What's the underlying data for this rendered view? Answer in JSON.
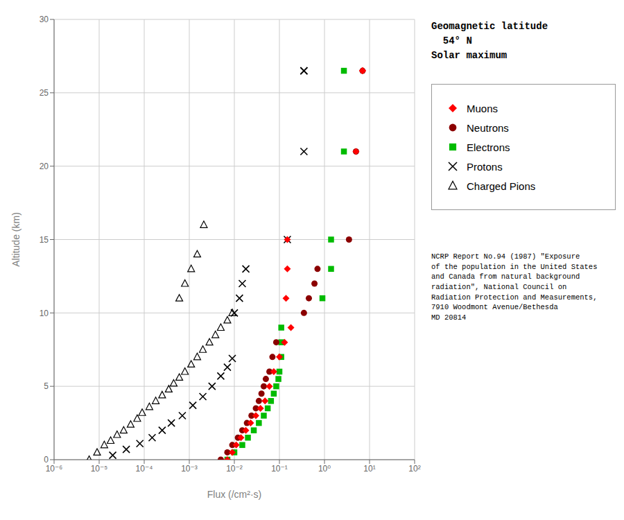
{
  "chart_data": {
    "type": "scatter",
    "xlabel": "Flux (/cm²·s)",
    "ylabel": "Altitude (km)",
    "log": "x",
    "xlim": [
      1e-06,
      100
    ],
    "xticks": [
      {
        "value": 1e-06,
        "label": "10⁻⁶"
      },
      {
        "value": 1e-05,
        "label": "10⁻⁵"
      },
      {
        "value": 0.0001,
        "label": "10⁻⁴"
      },
      {
        "value": 0.001,
        "label": "10⁻³"
      },
      {
        "value": 0.01,
        "label": "10⁻²"
      },
      {
        "value": 0.1,
        "label": "10⁻¹"
      },
      {
        "value": 1,
        "label": "10⁰"
      },
      {
        "value": 10,
        "label": "10¹"
      },
      {
        "value": 100,
        "label": "10²"
      }
    ],
    "ylim": [
      0,
      30
    ],
    "yticks": [
      0,
      5,
      10,
      15,
      20,
      25,
      30
    ],
    "grid": true,
    "legend": "right",
    "annotations": [
      "Geomagnetic latitude\n  54° N\nSolar maximum",
      "NCRP Report No.94 (1987) \"Exposure\nof the population in the United States\nand Canada from natural background\nradiation\", National Council on\nRadiation Protection and Measurements,\n7910 Woodmont Avenue/Bethesda\nMD 20814"
    ],
    "series": [
      {
        "name": "Muons",
        "color": "#FF0000",
        "marker": "diamond",
        "x": [
          0.007,
          0.009,
          0.011,
          0.014,
          0.018,
          0.023,
          0.03,
          0.038,
          0.048,
          0.06,
          0.075,
          0.1,
          0.13,
          0.18,
          0.14,
          0.15,
          0.15,
          5,
          7,
          7
        ],
        "values": [
          0,
          0.5,
          1,
          1.5,
          2,
          2.5,
          3,
          3.5,
          4,
          5,
          6,
          7,
          8,
          9,
          11,
          13,
          15,
          21,
          26.5,
          26.5
        ]
      },
      {
        "name": "Neutrons",
        "color": "#8B0000",
        "marker": "circle",
        "x": [
          0.005,
          0.007,
          0.009,
          0.012,
          0.015,
          0.019,
          0.024,
          0.03,
          0.035,
          0.04,
          0.045,
          0.05,
          0.06,
          0.07,
          0.085,
          0.35,
          0.45,
          0.6,
          0.7,
          3.5,
          5,
          7
        ],
        "values": [
          0,
          0.5,
          1,
          1.5,
          2,
          2.5,
          3,
          3.5,
          4,
          4.5,
          5,
          5.5,
          6,
          7,
          8,
          10,
          11,
          12,
          13,
          15,
          21,
          26.5
        ]
      },
      {
        "name": "Electrons",
        "color": "#00BB00",
        "marker": "square",
        "x": [
          0.007,
          0.01,
          0.015,
          0.02,
          0.027,
          0.035,
          0.045,
          0.055,
          0.065,
          0.075,
          0.085,
          0.095,
          0.1,
          0.11,
          0.11,
          0.11,
          0.9,
          1.4,
          1.4,
          2.7,
          2.7
        ],
        "values": [
          0,
          0.5,
          1,
          1.5,
          2,
          2.5,
          3,
          3.5,
          4,
          4.5,
          5,
          5.5,
          6,
          7,
          8,
          9,
          11,
          13,
          15,
          21,
          26.5
        ]
      },
      {
        "name": "Protons",
        "color": "#000000",
        "marker": "x",
        "x": [
          2e-05,
          4e-05,
          8e-05,
          0.00015,
          0.00025,
          0.0004,
          0.0007,
          0.0012,
          0.002,
          0.0032,
          0.005,
          0.007,
          0.009,
          0.01,
          0.013,
          0.015,
          0.018,
          0.15,
          0.35,
          0.35,
          0.35
        ],
        "values": [
          0.3,
          0.7,
          1.1,
          1.5,
          2,
          2.5,
          3,
          3.7,
          4.3,
          5,
          5.7,
          6.3,
          6.9,
          10,
          11,
          12,
          13,
          15,
          21,
          26.5,
          26.5
        ]
      },
      {
        "name": "Charged Pions",
        "color": "#000000",
        "marker": "triangle-open",
        "x": [
          6e-06,
          9e-06,
          1.3e-05,
          1.8e-05,
          2.5e-05,
          3.5e-05,
          5e-05,
          7e-05,
          9e-05,
          0.00013,
          0.00018,
          0.00025,
          0.00035,
          0.00045,
          0.0006,
          0.0008,
          0.0011,
          0.0015,
          0.002,
          0.0028,
          0.0038,
          0.005,
          0.007,
          0.009,
          0.0006,
          0.0008,
          0.0011,
          0.0015,
          0.0021
        ],
        "values": [
          0,
          0.5,
          1,
          1.3,
          1.7,
          2,
          2.4,
          2.8,
          3.2,
          3.6,
          4,
          4.4,
          4.8,
          5.2,
          5.6,
          6,
          6.5,
          7,
          7.5,
          8,
          8.5,
          9,
          9.5,
          10,
          11,
          12,
          13,
          14,
          16
        ]
      }
    ]
  }
}
